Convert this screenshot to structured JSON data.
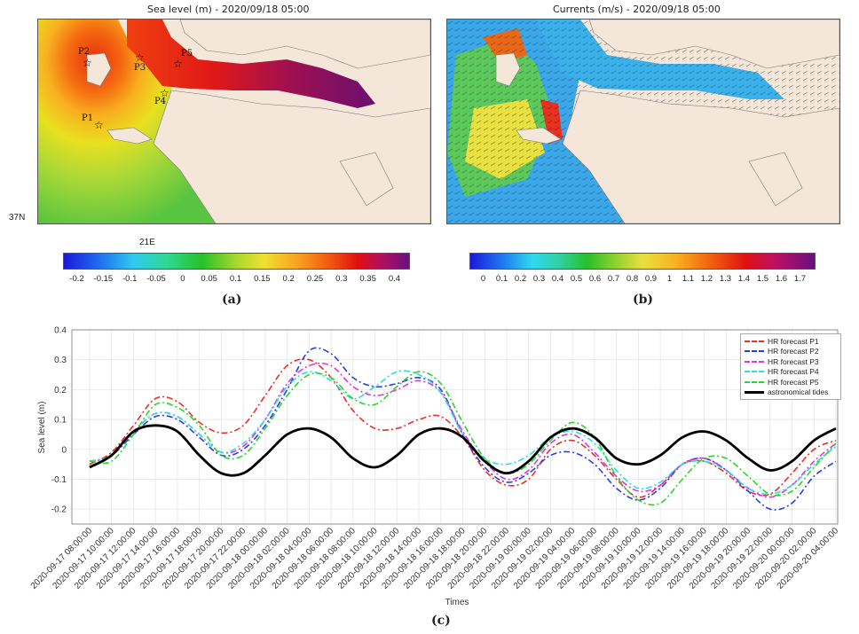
{
  "panel_a": {
    "title": "Sea level (m) - 2020/09/18 05:00",
    "label": "(a)",
    "lat_label": "37N",
    "lon_label": "21E",
    "stations": [
      "P1",
      "P2",
      "P3",
      "P4",
      "P5"
    ],
    "colorbar_ticks": [
      "-0.2",
      "-0.15",
      "-0.1",
      "-0.05",
      "0",
      "0.05",
      "0.1",
      "0.15",
      "0.2",
      "0.25",
      "0.3",
      "0.35",
      "0.4"
    ]
  },
  "panel_b": {
    "title": "Currents (m/s) - 2020/09/18 05:00",
    "label": "(b)",
    "colorbar_ticks": [
      "0",
      "0.1",
      "0.2",
      "0.3",
      "0.4",
      "0.5",
      "0.6",
      "0.7",
      "0.8",
      "0.9",
      "1",
      "1.1",
      "1.2",
      "1.3",
      "1.4",
      "1.5",
      "1.6",
      "1.7"
    ]
  },
  "chart_data": {
    "type": "line",
    "label": "(c)",
    "xlabel": "Times",
    "ylabel": "Sea level (m)",
    "ylim": [
      -0.25,
      0.4
    ],
    "yticks": [
      "0.4",
      "0.3",
      "0.2",
      "0.1",
      "0",
      "-0.1",
      "-0.2"
    ],
    "x": [
      "2020-09-17 08:00:00",
      "2020-09-17 10:00:00",
      "2020-09-17 12:00:00",
      "2020-09-17 14:00:00",
      "2020-09-17 16:00:00",
      "2020-09-17 18:00:00",
      "2020-09-17 20:00:00",
      "2020-09-17 22:00:00",
      "2020-09-18 00:00:00",
      "2020-09-18 02:00:00",
      "2020-09-18 04:00:00",
      "2020-09-18 06:00:00",
      "2020-09-18 08:00:00",
      "2020-09-18 10:00:00",
      "2020-09-18 12:00:00",
      "2020-09-18 14:00:00",
      "2020-09-18 16:00:00",
      "2020-09-18 18:00:00",
      "2020-09-18 20:00:00",
      "2020-09-18 22:00:00",
      "2020-09-19 00:00:00",
      "2020-09-19 02:00:00",
      "2020-09-19 04:00:00",
      "2020-09-19 06:00:00",
      "2020-09-19 08:00:00",
      "2020-09-19 10:00:00",
      "2020-09-19 12:00:00",
      "2020-09-19 14:00:00",
      "2020-09-19 16:00:00",
      "2020-09-19 18:00:00",
      "2020-09-19 20:00:00",
      "2020-09-19 22:00:00",
      "2020-09-20 00:00:00",
      "2020-09-20 02:00:00",
      "2020-09-20 04:00:00"
    ],
    "legend_position": "top-right",
    "grid": true,
    "series": [
      {
        "name": "HR forecast P1",
        "color": "#e8302a",
        "dash": "7,3,2,3",
        "width": 1.6,
        "values": [
          -0.05,
          -0.01,
          0.08,
          0.17,
          0.16,
          0.09,
          0.055,
          0.08,
          0.18,
          0.28,
          0.3,
          0.24,
          0.13,
          0.07,
          0.07,
          0.1,
          0.11,
          0.04,
          -0.07,
          -0.12,
          -0.1,
          0.0,
          0.03,
          -0.02,
          -0.1,
          -0.16,
          -0.12,
          -0.05,
          -0.04,
          -0.08,
          -0.14,
          -0.15,
          -0.08,
          0.0,
          0.03
        ]
      },
      {
        "name": "HR forecast P2",
        "color": "#2a3ee0",
        "dash": "7,3,2,3",
        "width": 1.6,
        "values": [
          -0.04,
          -0.02,
          0.05,
          0.11,
          0.1,
          0.04,
          -0.02,
          0.0,
          0.08,
          0.2,
          0.33,
          0.32,
          0.24,
          0.21,
          0.22,
          0.24,
          0.2,
          0.05,
          -0.06,
          -0.11,
          -0.08,
          -0.02,
          -0.01,
          -0.05,
          -0.13,
          -0.17,
          -0.13,
          -0.05,
          -0.03,
          -0.07,
          -0.14,
          -0.2,
          -0.18,
          -0.09,
          -0.04
        ]
      },
      {
        "name": "HR forecast P3",
        "color": "#e034e0",
        "dash": "7,3,2,3",
        "width": 1.6,
        "values": [
          -0.04,
          -0.02,
          0.06,
          0.12,
          0.11,
          0.05,
          -0.01,
          0.01,
          0.1,
          0.22,
          0.28,
          0.28,
          0.21,
          0.18,
          0.2,
          0.23,
          0.19,
          0.06,
          -0.04,
          -0.1,
          -0.07,
          0.02,
          0.05,
          -0.01,
          -0.09,
          -0.14,
          -0.12,
          -0.05,
          -0.03,
          -0.07,
          -0.13,
          -0.16,
          -0.12,
          -0.04,
          0.02
        ]
      },
      {
        "name": "HR forecast P4",
        "color": "#27e0e0",
        "dash": "7,3,2,3",
        "width": 1.6,
        "values": [
          -0.04,
          -0.02,
          0.06,
          0.12,
          0.11,
          0.05,
          -0.01,
          0.02,
          0.1,
          0.21,
          0.26,
          0.23,
          0.17,
          0.21,
          0.26,
          0.25,
          0.19,
          0.05,
          -0.03,
          -0.05,
          -0.02,
          0.04,
          0.06,
          0.02,
          -0.07,
          -0.13,
          -0.11,
          -0.05,
          -0.04,
          -0.07,
          -0.13,
          -0.15,
          -0.12,
          -0.05,
          0.01
        ]
      },
      {
        "name": "HR forecast P5",
        "color": "#2ad62a",
        "dash": "7,3,2,3",
        "width": 1.6,
        "values": [
          -0.04,
          -0.04,
          0.05,
          0.15,
          0.14,
          0.08,
          -0.02,
          -0.02,
          0.07,
          0.18,
          0.25,
          0.24,
          0.17,
          0.15,
          0.21,
          0.26,
          0.22,
          0.09,
          -0.03,
          -0.08,
          -0.05,
          0.03,
          0.09,
          0.04,
          -0.09,
          -0.17,
          -0.18,
          -0.1,
          -0.03,
          -0.03,
          -0.09,
          -0.15,
          -0.14,
          -0.06,
          0.02
        ]
      },
      {
        "name": "astronomical tides",
        "color": "#000000",
        "dash": "",
        "width": 2.8,
        "values": [
          -0.06,
          -0.02,
          0.06,
          0.08,
          0.06,
          -0.02,
          -0.08,
          -0.08,
          -0.02,
          0.05,
          0.07,
          0.04,
          -0.03,
          -0.06,
          -0.02,
          0.05,
          0.07,
          0.04,
          -0.04,
          -0.08,
          -0.04,
          0.04,
          0.07,
          0.04,
          -0.03,
          -0.05,
          -0.02,
          0.04,
          0.06,
          0.03,
          -0.03,
          -0.07,
          -0.04,
          0.03,
          0.07
        ]
      }
    ]
  }
}
